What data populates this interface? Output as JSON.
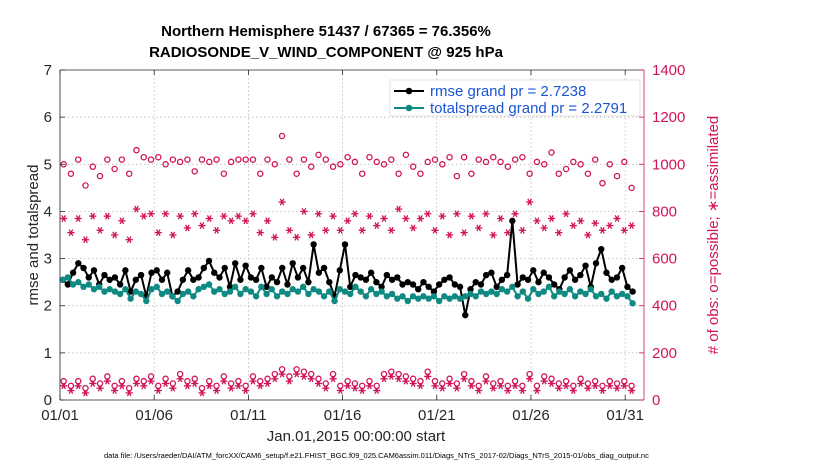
{
  "chart_data": {
    "type": "line",
    "title_line1": "Northern Hemisphere 51437 / 67365 = 76.356%",
    "title_line2": "RADIOSONDE_V_WIND_COMPONENT @ 925 hPa",
    "xlabel": "Jan.01,2015 00:00:00 start",
    "ylabel_left": "rmse and totalspread",
    "ylabel_right": "# of obs: o=possible; ∗=assimilated",
    "x_tick_labels": [
      "01/01",
      "01/06",
      "01/11",
      "01/16",
      "01/21",
      "01/26",
      "01/31"
    ],
    "x_tick_days": [
      1,
      6,
      11,
      16,
      21,
      26,
      31
    ],
    "xlim": [
      1,
      32
    ],
    "ylim_left": [
      0,
      7
    ],
    "y_ticks_left": [
      0,
      1,
      2,
      3,
      4,
      5,
      6,
      7
    ],
    "ylim_right": [
      0,
      1400
    ],
    "y_ticks_right": [
      0,
      200,
      400,
      600,
      800,
      1000,
      1200,
      1400
    ],
    "legend": {
      "entries": [
        "rmse grand pr = 2.7238",
        "totalspread grand pr = 2.2791"
      ],
      "placement": "top-right"
    },
    "series": [
      {
        "name": "rmse",
        "color": "#000000",
        "marker": "filled-circle",
        "values": [
          2.55,
          2.45,
          2.7,
          2.9,
          2.8,
          2.6,
          2.75,
          2.45,
          2.65,
          2.55,
          2.6,
          2.45,
          2.75,
          2.3,
          2.55,
          2.65,
          2.2,
          2.7,
          2.75,
          2.55,
          2.7,
          2.2,
          2.3,
          2.55,
          2.75,
          2.55,
          2.6,
          2.8,
          2.95,
          2.7,
          2.6,
          2.8,
          2.4,
          2.9,
          2.55,
          2.85,
          2.6,
          2.55,
          2.8,
          2.4,
          2.6,
          2.5,
          2.8,
          2.45,
          2.9,
          2.6,
          2.8,
          2.5,
          3.3,
          2.7,
          2.8,
          2.5,
          2.2,
          2.75,
          3.3,
          2.4,
          2.65,
          2.6,
          2.55,
          2.7,
          2.5,
          2.4,
          2.65,
          2.55,
          2.6,
          2.45,
          2.5,
          2.45,
          2.35,
          2.5,
          2.4,
          2.3,
          2.45,
          2.55,
          2.6,
          2.45,
          2.4,
          1.8,
          2.35,
          2.5,
          2.45,
          2.65,
          2.7,
          2.4,
          2.55,
          2.65,
          3.8,
          2.45,
          2.6,
          2.55,
          2.75,
          2.5,
          2.7,
          2.6,
          2.45,
          2.35,
          2.6,
          2.75,
          2.55,
          2.65,
          2.85,
          2.4,
          2.9,
          3.2,
          2.7,
          2.55,
          2.6,
          2.8,
          2.4,
          2.3
        ]
      },
      {
        "name": "totalspread",
        "color": "#0f8a82",
        "marker": "filled-circle",
        "values": [
          2.55,
          2.6,
          2.45,
          2.5,
          2.4,
          2.45,
          2.35,
          2.4,
          2.3,
          2.35,
          2.3,
          2.25,
          2.35,
          2.15,
          2.3,
          2.25,
          2.1,
          2.35,
          2.4,
          2.25,
          2.3,
          2.2,
          2.1,
          2.25,
          2.3,
          2.2,
          2.35,
          2.4,
          2.45,
          2.3,
          2.35,
          2.25,
          2.3,
          2.4,
          2.25,
          2.35,
          2.3,
          2.2,
          2.4,
          2.25,
          2.35,
          2.2,
          2.3,
          2.25,
          2.35,
          2.3,
          2.4,
          2.25,
          2.35,
          2.3,
          2.2,
          2.3,
          2.1,
          2.35,
          2.3,
          2.25,
          2.4,
          2.3,
          2.2,
          2.35,
          2.25,
          2.3,
          2.2,
          2.25,
          2.15,
          2.2,
          2.1,
          2.2,
          2.15,
          2.2,
          2.15,
          2.2,
          2.1,
          2.2,
          2.15,
          2.2,
          2.15,
          2.2,
          2.25,
          2.2,
          2.3,
          2.25,
          2.3,
          2.25,
          2.35,
          2.3,
          2.4,
          2.2,
          2.3,
          2.15,
          2.35,
          2.25,
          2.3,
          2.4,
          2.2,
          2.3,
          2.25,
          2.35,
          2.2,
          2.3,
          2.25,
          2.35,
          2.2,
          2.25,
          2.15,
          2.3,
          2.2,
          2.25,
          2.2,
          2.05
        ]
      },
      {
        "name": "obs-possible (upper)",
        "axis": "right",
        "color": "#d1145a",
        "marker": "open-circle",
        "values": [
          1000,
          960,
          1020,
          910,
          990,
          950,
          1020,
          980,
          1020,
          960,
          1060,
          1030,
          1020,
          1030,
          1000,
          1020,
          1010,
          1020,
          970,
          1020,
          1010,
          1020,
          960,
          1010,
          1020,
          1020,
          1020,
          960,
          1020,
          1000,
          1120,
          1020,
          960,
          1020,
          990,
          1040,
          1020,
          990,
          1000,
          1030,
          1010,
          960,
          1030,
          1010,
          1000,
          1020,
          960,
          1040,
          990,
          960,
          1010,
          1020,
          1000,
          1030,
          950,
          1030,
          960,
          1020,
          1010,
          1030,
          1010,
          990,
          1020,
          1030,
          960,
          1010,
          1000,
          1050,
          960,
          980,
          1010,
          1000,
          960,
          1020,
          920,
          1000,
          950,
          1010,
          900
        ]
      },
      {
        "name": "obs-assimilated (upper)",
        "axis": "right",
        "color": "#d1145a",
        "marker": "asterisk",
        "values": [
          770,
          710,
          770,
          680,
          780,
          720,
          780,
          700,
          760,
          680,
          810,
          780,
          790,
          710,
          790,
          700,
          780,
          730,
          790,
          740,
          770,
          720,
          780,
          760,
          780,
          760,
          790,
          710,
          760,
          690,
          840,
          720,
          690,
          800,
          700,
          790,
          720,
          780,
          720,
          760,
          790,
          720,
          780,
          740,
          770,
          720,
          810,
          770,
          730,
          770,
          790,
          720,
          780,
          700,
          790,
          710,
          780,
          730,
          790,
          700,
          770,
          710,
          790,
          720,
          840,
          760,
          730,
          770,
          710,
          790,
          740,
          760,
          700,
          750,
          720,
          740,
          770,
          720,
          740
        ]
      },
      {
        "name": "obs-possible (lower)",
        "axis": "right",
        "color": "#d1145a",
        "marker": "open-circle",
        "values": [
          80,
          60,
          80,
          50,
          90,
          70,
          100,
          60,
          80,
          50,
          90,
          80,
          100,
          60,
          90,
          70,
          110,
          80,
          90,
          50,
          80,
          60,
          100,
          70,
          80,
          60,
          100,
          80,
          90,
          110,
          130,
          100,
          130,
          120,
          110,
          90,
          70,
          110,
          60,
          80,
          70,
          60,
          80,
          60,
          110,
          120,
          110,
          100,
          90,
          80,
          120,
          80,
          70,
          90,
          70,
          110,
          80,
          60,
          100,
          70,
          80,
          60,
          80,
          60,
          110,
          60,
          100,
          90,
          70,
          80,
          60,
          90,
          70,
          80,
          60,
          80,
          70,
          80,
          60
        ]
      },
      {
        "name": "obs-assimilated (lower)",
        "axis": "right",
        "color": "#d1145a",
        "marker": "asterisk",
        "values": [
          60,
          40,
          60,
          30,
          70,
          50,
          80,
          40,
          60,
          30,
          70,
          60,
          80,
          40,
          70,
          50,
          90,
          60,
          70,
          30,
          60,
          40,
          80,
          50,
          60,
          40,
          80,
          60,
          70,
          90,
          110,
          80,
          110,
          100,
          90,
          70,
          50,
          90,
          40,
          60,
          50,
          40,
          60,
          40,
          90,
          100,
          90,
          80,
          70,
          60,
          100,
          60,
          50,
          70,
          50,
          90,
          60,
          40,
          80,
          50,
          60,
          40,
          60,
          40,
          90,
          40,
          80,
          70,
          50,
          60,
          40,
          70,
          50,
          60,
          40,
          60,
          50,
          60,
          40
        ]
      }
    ]
  },
  "footer": "data file: /Users/raeder/DAI/ATM_forcXX/CAM6_setup/f.e21.FHIST_BGC.f09_025.CAM6assim.011/Diags_NTrS_2017-02/Diags_NTrS_2015-01/obs_diag_output.nc"
}
